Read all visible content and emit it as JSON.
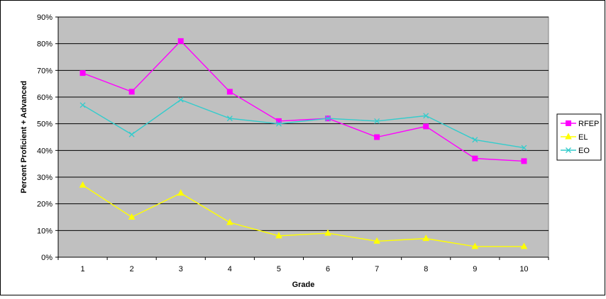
{
  "chart_data": {
    "type": "line",
    "title": "",
    "xlabel": "Grade",
    "ylabel": "Percent Proficient + Advanced",
    "categories": [
      "1",
      "2",
      "3",
      "4",
      "5",
      "6",
      "7",
      "8",
      "9",
      "10"
    ],
    "ylim": [
      0,
      90
    ],
    "yticks": [
      0,
      10,
      20,
      30,
      40,
      50,
      60,
      70,
      80,
      90
    ],
    "ytick_labels": [
      "0%",
      "10%",
      "20%",
      "30%",
      "40%",
      "50%",
      "60%",
      "70%",
      "80%",
      "90%"
    ],
    "grid": true,
    "legend_position": "right",
    "plot_background": "#C0C0C0",
    "series": [
      {
        "name": "RFEP",
        "color": "#FF00FF",
        "marker": "square",
        "values": [
          69,
          62,
          81,
          62,
          51,
          52,
          45,
          49,
          37,
          36
        ]
      },
      {
        "name": "EL",
        "color": "#FFFF00",
        "marker": "triangle",
        "values": [
          27,
          15,
          24,
          13,
          8,
          9,
          6,
          7,
          4,
          4
        ]
      },
      {
        "name": "EO",
        "color": "#33CCCC",
        "marker": "x",
        "values": [
          57,
          46,
          59,
          52,
          50,
          52,
          51,
          53,
          44,
          41
        ]
      }
    ]
  }
}
